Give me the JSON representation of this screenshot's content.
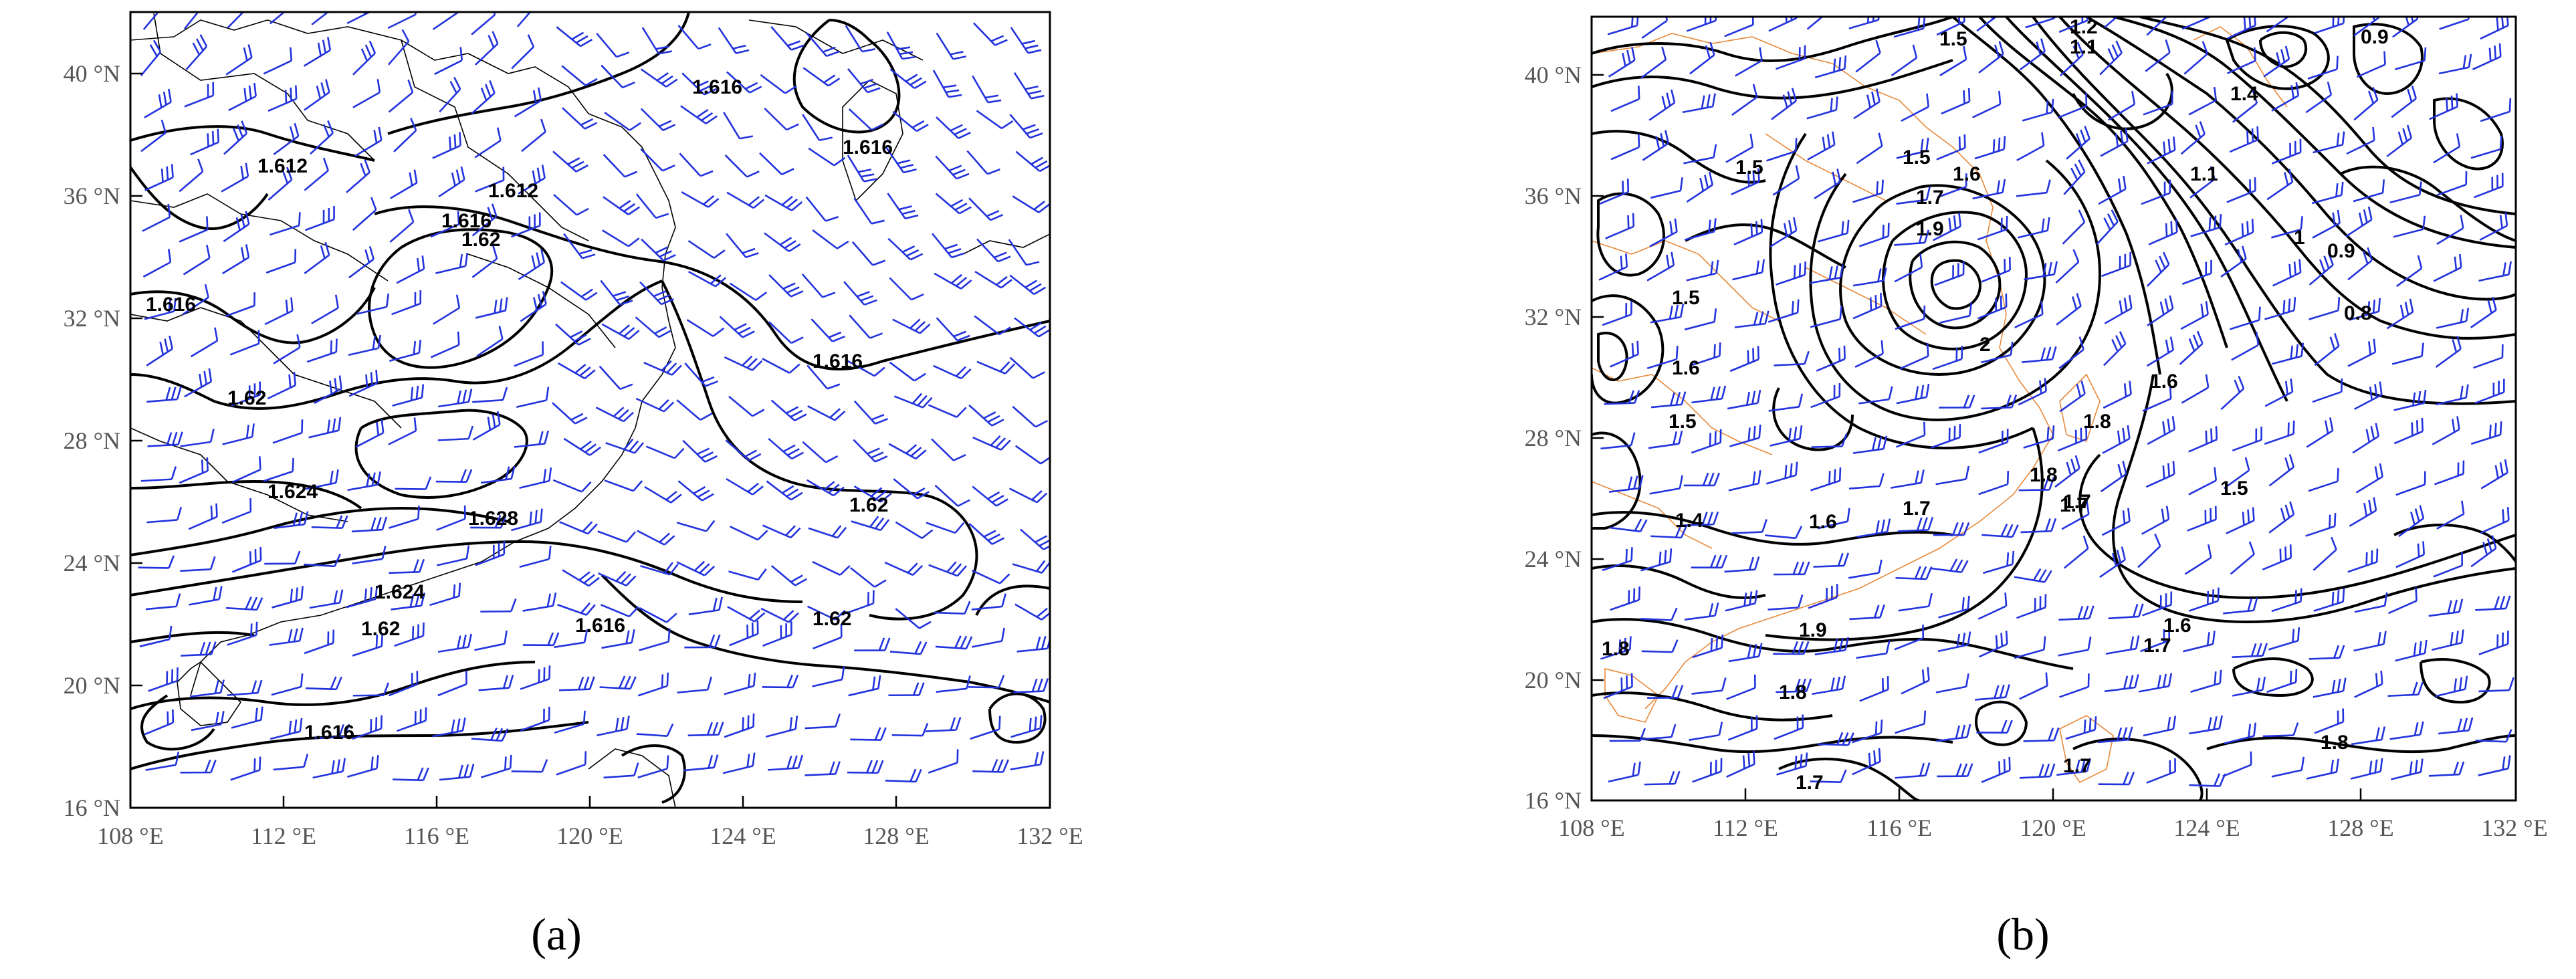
{
  "figure": {
    "panels": [
      {
        "id": "a",
        "caption": "(a)",
        "lat_labels": [
          "40 °N",
          "36 °N",
          "32 °N",
          "28 °N",
          "24 °N",
          "20 °N",
          "16 °N"
        ],
        "lon_labels": [
          "108 °E",
          "112 °E",
          "116 °E",
          "120 °E",
          "124 °E",
          "128 °E",
          "132 °E"
        ],
        "contour_labels": [
          "1.616",
          "1.616",
          "1.612",
          "1.612",
          "1.616",
          "1.62",
          "1.616",
          "1.616",
          "1.62",
          "1.624",
          "1.628",
          "1.62",
          "1.624",
          "1.62",
          "1.616",
          "1.62",
          "1.616"
        ]
      },
      {
        "id": "b",
        "caption": "(b)",
        "lat_labels": [
          "40 °N",
          "36 °N",
          "32 °N",
          "28 °N",
          "24 °N",
          "20 °N",
          "16 °N"
        ],
        "lon_labels": [
          "108 °E",
          "112 °E",
          "116 °E",
          "120 °E",
          "124 °E",
          "128 °E",
          "132 °E"
        ],
        "contour_labels": [
          "1.5",
          "1.2",
          "1.1",
          "0.9",
          "1.4",
          "1.5",
          "1.5",
          "1.6",
          "1.7",
          "1.1",
          "1.9",
          "1",
          "0.9",
          "1.5",
          "0.8",
          "2",
          "1.6",
          "1.5",
          "1.6",
          "1.8",
          "1.8",
          "1.7",
          "1.4",
          "1.6",
          "1.7",
          "1.7",
          "1.5",
          "1.6",
          "1.7",
          "1.9",
          "1.8",
          "1.8",
          "1.8",
          "1.7",
          "1.7"
        ]
      }
    ],
    "colors": {
      "contour": "#000000",
      "wind_barb": "#2233dd",
      "coastline_a": "#000000",
      "coastline_b": "#e8893a"
    }
  }
}
